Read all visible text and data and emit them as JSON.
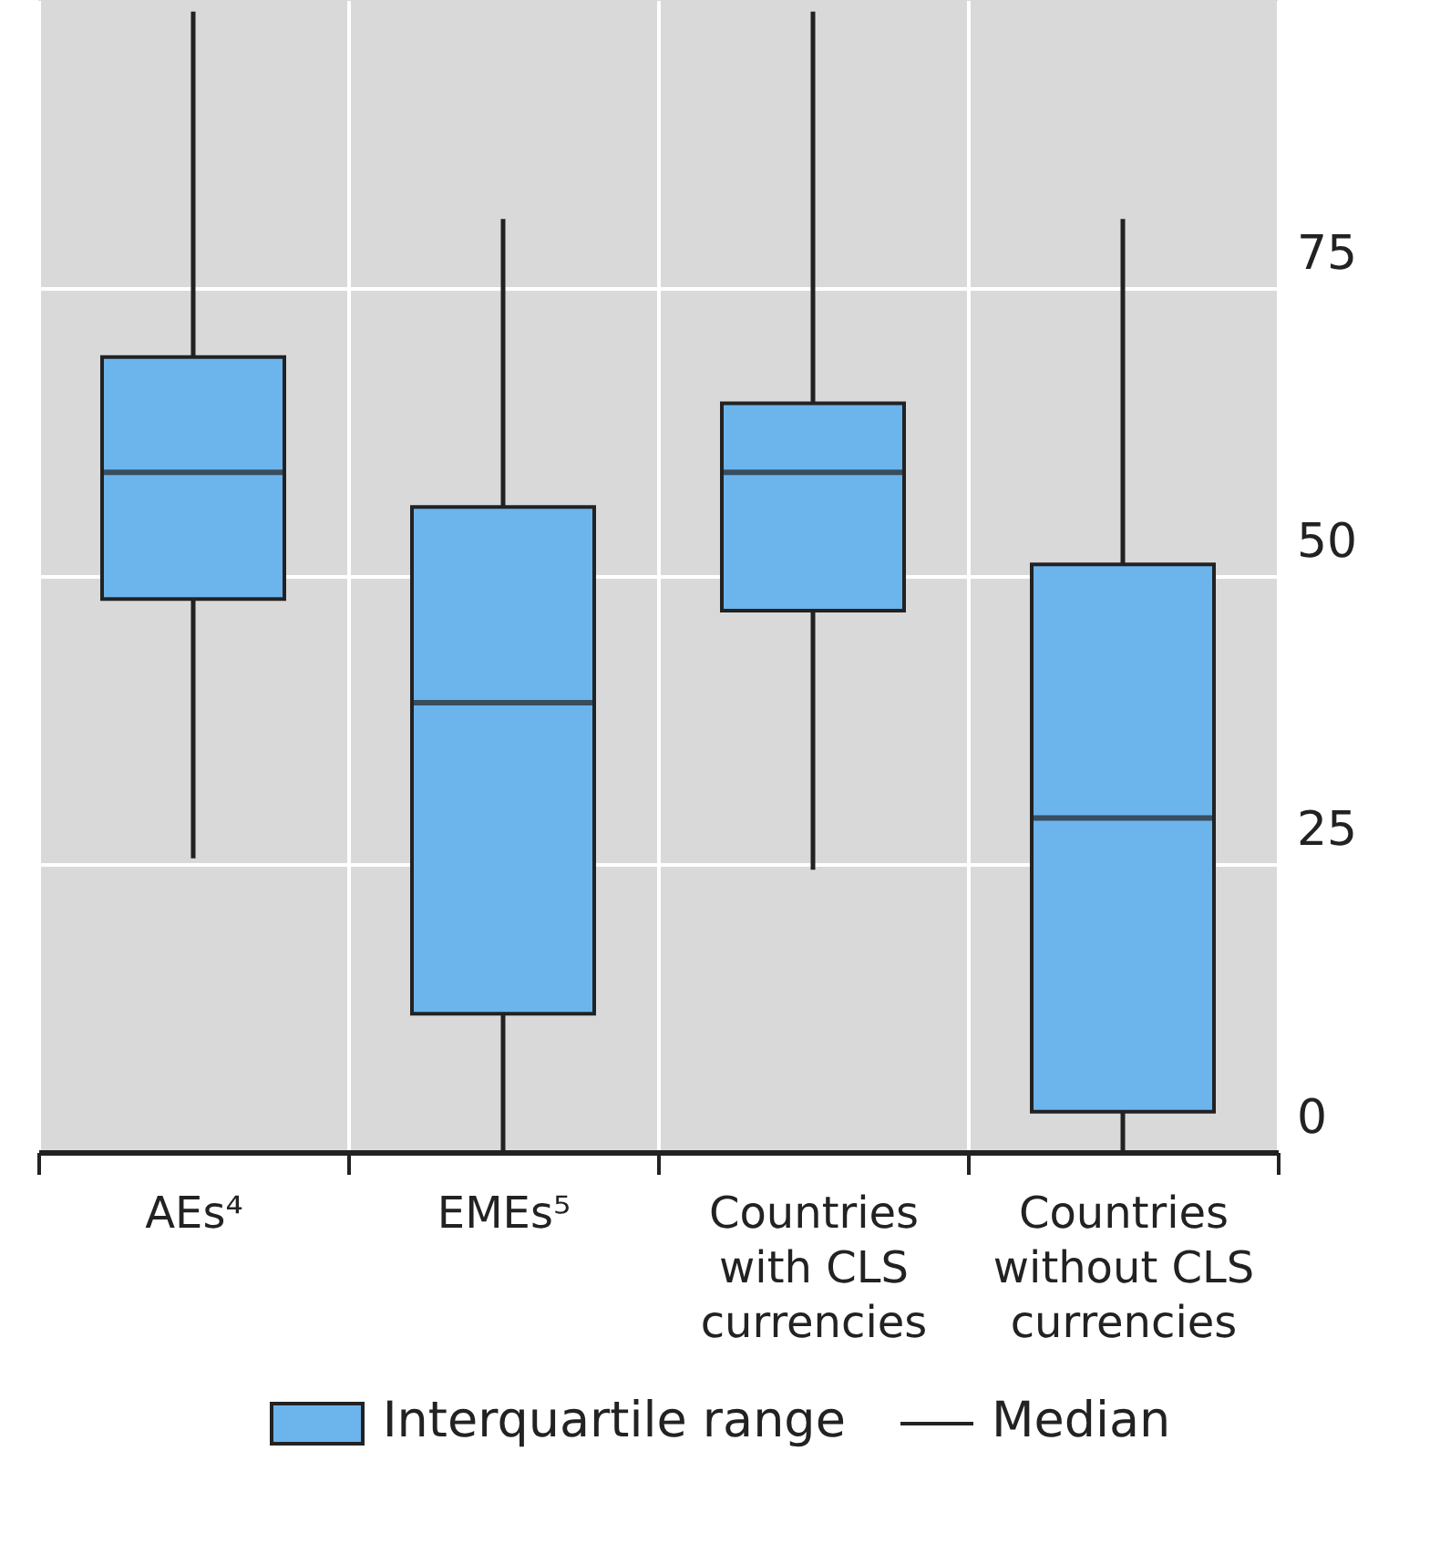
{
  "chart_data": {
    "type": "box",
    "categories": [
      "AEs⁴",
      "EMEs⁵",
      "Countries with CLS currencies",
      "Countries without CLS currencies"
    ],
    "series": [
      {
        "name": "Interquartile range",
        "color": "#6cb4ec",
        "boxes": [
          {
            "low": 25.5,
            "q1": 48,
            "median": 59,
            "q3": 69,
            "high": 99
          },
          {
            "low": 0,
            "q1": 12,
            "median": 39,
            "q3": 56,
            "high": 81
          },
          {
            "low": 24.5,
            "q1": 47,
            "median": 59,
            "q3": 65,
            "high": 99
          },
          {
            "low": 0,
            "q1": 3.5,
            "median": 29,
            "q3": 51,
            "high": 81
          }
        ]
      }
    ],
    "ylim": [
      0,
      100
    ],
    "yticks": [
      0,
      25,
      50,
      75
    ],
    "grid": true,
    "legend": "bottom",
    "annotations": [
      "Median"
    ]
  }
}
